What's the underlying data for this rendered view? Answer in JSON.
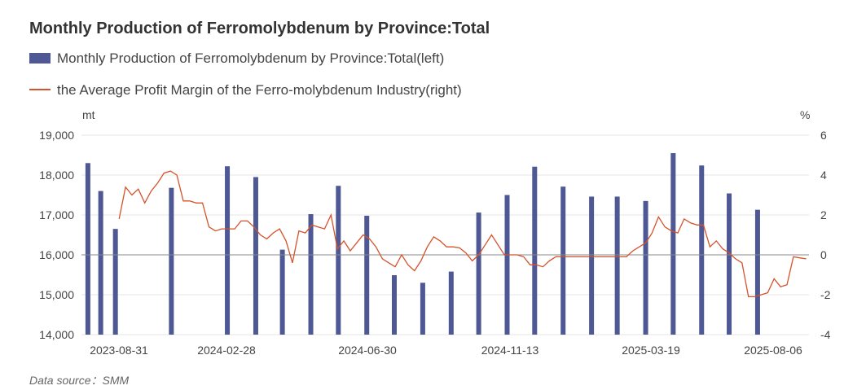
{
  "chart_data": {
    "type": "bar",
    "title": "Monthly Production of Ferromolybdenum by Province:Total",
    "legend": {
      "placement": "top-left",
      "bar_label": "Monthly Production of Ferromolybdenum by Province:Total(left)",
      "line_label": "the Average Profit Margin of the Ferro-molybdenum Industry(right)"
    },
    "y_left_unit": "mt",
    "y_right_unit": "%",
    "y_left_ticks": [
      "19,000",
      "18,000",
      "17,000",
      "16,000",
      "15,000",
      "14,000"
    ],
    "y_right_ticks": [
      "6",
      "4",
      "2",
      "0",
      "-2",
      "-4"
    ],
    "ylim_left": [
      14000,
      19000
    ],
    "ylim_right": [
      -4,
      6
    ],
    "x_tick_labels": [
      "2023-08-31",
      "2024-02-28",
      "2024-06-30",
      "2024-11-13",
      "2025-03-19",
      "2025-08-06"
    ],
    "colors": {
      "bar": "#4d5895",
      "line": "#d4532b",
      "zero_line": "#888888",
      "grid": "#e6e6e6"
    },
    "series": [
      {
        "name": "Monthly Production of Ferromolybdenum by Province:Total(left)",
        "type": "bar",
        "axis": "left",
        "points": [
          {
            "x": "2023-08-01",
            "y": 18300
          },
          {
            "x": "2023-08-15",
            "y": 17600
          },
          {
            "x": "2023-08-31",
            "y": 16650
          },
          {
            "x": "2023-10-31",
            "y": 17680
          },
          {
            "x": "2023-12-31",
            "y": 18220
          },
          {
            "x": "2024-01-31",
            "y": 17950
          },
          {
            "x": "2024-02-29",
            "y": 16130
          },
          {
            "x": "2024-03-31",
            "y": 17020
          },
          {
            "x": "2024-04-30",
            "y": 17730
          },
          {
            "x": "2024-05-31",
            "y": 16980
          },
          {
            "x": "2024-06-30",
            "y": 15490
          },
          {
            "x": "2024-07-31",
            "y": 15300
          },
          {
            "x": "2024-08-31",
            "y": 15580
          },
          {
            "x": "2024-09-30",
            "y": 17060
          },
          {
            "x": "2024-10-31",
            "y": 17500
          },
          {
            "x": "2024-11-30",
            "y": 18210
          },
          {
            "x": "2024-12-31",
            "y": 17710
          },
          {
            "x": "2025-01-31",
            "y": 17460
          },
          {
            "x": "2025-02-28",
            "y": 17460
          },
          {
            "x": "2025-03-31",
            "y": 17350
          },
          {
            "x": "2025-04-30",
            "y": 18550
          },
          {
            "x": "2025-05-31",
            "y": 18240
          },
          {
            "x": "2025-06-30",
            "y": 17540
          },
          {
            "x": "2025-07-31",
            "y": 17130
          }
        ]
      },
      {
        "name": "the Average Profit Margin of the Ferro-molybdenum Industry(right)",
        "type": "line",
        "axis": "right",
        "points": [
          {
            "x": "2023-09-04",
            "y": 1.8
          },
          {
            "x": "2023-09-11",
            "y": 3.4
          },
          {
            "x": "2023-09-18",
            "y": 3.0
          },
          {
            "x": "2023-09-25",
            "y": 3.3
          },
          {
            "x": "2023-10-02",
            "y": 2.6
          },
          {
            "x": "2023-10-09",
            "y": 3.2
          },
          {
            "x": "2023-10-16",
            "y": 3.6
          },
          {
            "x": "2023-10-23",
            "y": 4.1
          },
          {
            "x": "2023-10-30",
            "y": 4.2
          },
          {
            "x": "2023-11-06",
            "y": 4.0
          },
          {
            "x": "2023-11-13",
            "y": 2.7
          },
          {
            "x": "2023-11-20",
            "y": 2.7
          },
          {
            "x": "2023-11-27",
            "y": 2.6
          },
          {
            "x": "2023-12-04",
            "y": 2.6
          },
          {
            "x": "2023-12-11",
            "y": 1.4
          },
          {
            "x": "2023-12-18",
            "y": 1.2
          },
          {
            "x": "2023-12-25",
            "y": 1.3
          },
          {
            "x": "2024-01-01",
            "y": 1.3
          },
          {
            "x": "2024-01-08",
            "y": 1.3
          },
          {
            "x": "2024-01-15",
            "y": 1.7
          },
          {
            "x": "2024-01-22",
            "y": 1.7
          },
          {
            "x": "2024-01-29",
            "y": 1.4
          },
          {
            "x": "2024-02-05",
            "y": 1.0
          },
          {
            "x": "2024-02-12",
            "y": 0.8
          },
          {
            "x": "2024-02-19",
            "y": 1.1
          },
          {
            "x": "2024-02-26",
            "y": 1.3
          },
          {
            "x": "2024-03-04",
            "y": 0.7
          },
          {
            "x": "2024-03-11",
            "y": -0.4
          },
          {
            "x": "2024-03-18",
            "y": 1.2
          },
          {
            "x": "2024-03-25",
            "y": 1.1
          },
          {
            "x": "2024-04-01",
            "y": 1.5
          },
          {
            "x": "2024-04-08",
            "y": 1.4
          },
          {
            "x": "2024-04-15",
            "y": 1.3
          },
          {
            "x": "2024-04-22",
            "y": 2.0
          },
          {
            "x": "2024-04-29",
            "y": 0.3
          },
          {
            "x": "2024-05-06",
            "y": 0.7
          },
          {
            "x": "2024-05-13",
            "y": 0.2
          },
          {
            "x": "2024-05-20",
            "y": 0.6
          },
          {
            "x": "2024-05-27",
            "y": 1.0
          },
          {
            "x": "2024-06-03",
            "y": 0.8
          },
          {
            "x": "2024-06-10",
            "y": 0.4
          },
          {
            "x": "2024-06-17",
            "y": -0.2
          },
          {
            "x": "2024-06-24",
            "y": -0.4
          },
          {
            "x": "2024-07-01",
            "y": -0.6
          },
          {
            "x": "2024-07-08",
            "y": 0.0
          },
          {
            "x": "2024-07-15",
            "y": -0.5
          },
          {
            "x": "2024-07-22",
            "y": -0.8
          },
          {
            "x": "2024-07-29",
            "y": -0.3
          },
          {
            "x": "2024-08-05",
            "y": 0.4
          },
          {
            "x": "2024-08-12",
            "y": 0.9
          },
          {
            "x": "2024-08-19",
            "y": 0.7
          },
          {
            "x": "2024-08-26",
            "y": 0.4
          },
          {
            "x": "2024-09-02",
            "y": 0.4
          },
          {
            "x": "2024-09-09",
            "y": 0.35
          },
          {
            "x": "2024-09-16",
            "y": 0.1
          },
          {
            "x": "2024-09-23",
            "y": -0.3
          },
          {
            "x": "2024-09-30",
            "y": 0.0
          },
          {
            "x": "2024-10-07",
            "y": 0.5
          },
          {
            "x": "2024-10-14",
            "y": 1.0
          },
          {
            "x": "2024-10-21",
            "y": 0.5
          },
          {
            "x": "2024-10-28",
            "y": 0.0
          },
          {
            "x": "2024-11-04",
            "y": 0.0
          },
          {
            "x": "2024-11-11",
            "y": 0.0
          },
          {
            "x": "2024-11-18",
            "y": -0.1
          },
          {
            "x": "2024-11-25",
            "y": -0.5
          },
          {
            "x": "2024-12-02",
            "y": -0.5
          },
          {
            "x": "2024-12-09",
            "y": -0.6
          },
          {
            "x": "2024-12-16",
            "y": -0.3
          },
          {
            "x": "2024-12-23",
            "y": -0.1
          },
          {
            "x": "2024-12-30",
            "y": -0.1
          },
          {
            "x": "2025-01-13",
            "y": -0.1
          },
          {
            "x": "2025-01-27",
            "y": -0.1
          },
          {
            "x": "2025-02-10",
            "y": -0.1
          },
          {
            "x": "2025-02-24",
            "y": -0.1
          },
          {
            "x": "2025-03-10",
            "y": -0.1
          },
          {
            "x": "2025-03-17",
            "y": 0.2
          },
          {
            "x": "2025-03-24",
            "y": 0.4
          },
          {
            "x": "2025-03-31",
            "y": 0.6
          },
          {
            "x": "2025-04-07",
            "y": 1.1
          },
          {
            "x": "2025-04-14",
            "y": 1.9
          },
          {
            "x": "2025-04-21",
            "y": 1.4
          },
          {
            "x": "2025-04-28",
            "y": 1.2
          },
          {
            "x": "2025-05-05",
            "y": 1.1
          },
          {
            "x": "2025-05-12",
            "y": 1.8
          },
          {
            "x": "2025-05-19",
            "y": 1.6
          },
          {
            "x": "2025-05-26",
            "y": 1.5
          },
          {
            "x": "2025-06-02",
            "y": 1.5
          },
          {
            "x": "2025-06-09",
            "y": 0.4
          },
          {
            "x": "2025-06-16",
            "y": 0.7
          },
          {
            "x": "2025-06-23",
            "y": 0.3
          },
          {
            "x": "2025-06-30",
            "y": 0.1
          },
          {
            "x": "2025-07-07",
            "y": -0.2
          },
          {
            "x": "2025-07-14",
            "y": -0.4
          },
          {
            "x": "2025-07-21",
            "y": -2.1
          },
          {
            "x": "2025-07-28",
            "y": -2.1
          },
          {
            "x": "2025-08-04",
            "y": -2.0
          },
          {
            "x": "2025-08-11",
            "y": -1.9
          },
          {
            "x": "2025-08-18",
            "y": -1.2
          },
          {
            "x": "2025-08-25",
            "y": -1.6
          },
          {
            "x": "2025-09-01",
            "y": -1.5
          },
          {
            "x": "2025-09-08",
            "y": -0.1
          },
          {
            "x": "2025-09-15",
            "y": -0.15
          },
          {
            "x": "2025-09-22",
            "y": -0.2
          }
        ]
      }
    ]
  },
  "source_text": "Data source：SMM"
}
